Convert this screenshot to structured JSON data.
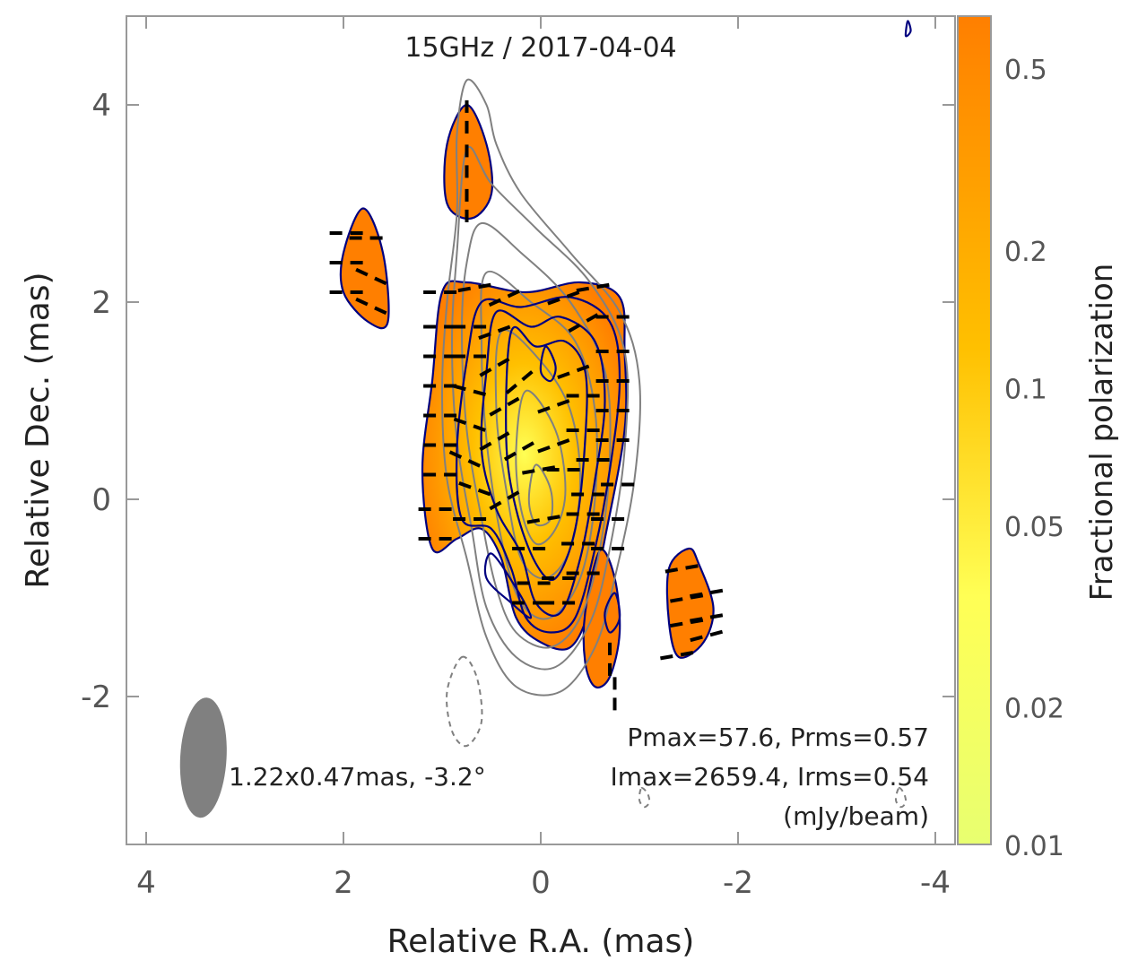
{
  "colors": {
    "frame": "#999999",
    "tick_label": "#555555",
    "fill_high": "#ff7f00",
    "fill_mid": "#ffc000",
    "fill_low": "#ffff55",
    "pol_contour": "#000080",
    "total_contour": "#808080",
    "evpa": "#000000",
    "beam": "#808080"
  },
  "chart_data": {
    "type": "contour-map",
    "title": "15GHz / 2017-04-04",
    "xlabel": "Relative R.A. (mas)",
    "ylabel": "Relative Dec. (mas)",
    "x_ticks": [
      4,
      2,
      0,
      -2,
      -4
    ],
    "x_tick_labels": [
      "4",
      "2",
      "0",
      "-2",
      "-4"
    ],
    "y_ticks": [
      -2,
      0,
      2,
      4
    ],
    "y_tick_labels": [
      "-2",
      "0",
      "2",
      "4"
    ],
    "xlim": [
      4.2,
      -4.2
    ],
    "ylim": [
      -3.5,
      4.9
    ],
    "beam": {
      "major_mas": 1.22,
      "minor_mas": 0.47,
      "pa_deg": -3.2,
      "center": [
        3.42,
        -2.62
      ],
      "label": "1.22x0.47mas, -3.2°"
    },
    "stats": {
      "line1": "Pmax=57.6, Prms=0.57",
      "line2": "Imax=2659.4, Irms=0.54",
      "line3": "(mJy/beam)",
      "pmax": 57.6,
      "prms": 0.57,
      "imax": 2659.4,
      "irms": 0.54
    },
    "colorbar": {
      "label": "Fractional polarization",
      "scale": "log",
      "range": [
        0.01,
        0.65
      ],
      "ticks": [
        0.01,
        0.02,
        0.05,
        0.1,
        0.2,
        0.5
      ],
      "tick_labels": [
        "0.01",
        "0.02",
        "0.05",
        "0.1",
        "0.2",
        "0.5"
      ]
    },
    "total_intensity_contours": [
      [
        [
          0.75,
          4.25
        ],
        [
          0.55,
          4.0
        ],
        [
          0.45,
          3.6
        ],
        [
          0.2,
          3.1
        ],
        [
          -0.3,
          2.5
        ],
        [
          -0.8,
          1.9
        ],
        [
          -1.0,
          1.2
        ],
        [
          -0.95,
          0.2
        ],
        [
          -0.75,
          -0.8
        ],
        [
          -0.55,
          -1.5
        ],
        [
          -0.2,
          -1.95
        ],
        [
          0.25,
          -1.9
        ],
        [
          0.55,
          -1.4
        ],
        [
          0.75,
          -0.6
        ],
        [
          0.95,
          0.2
        ],
        [
          1.0,
          1.1
        ],
        [
          0.95,
          2.0
        ],
        [
          0.85,
          2.9
        ],
        [
          0.85,
          3.7
        ],
        [
          0.75,
          4.25
        ]
      ],
      [
        [
          0.75,
          3.55
        ],
        [
          0.5,
          3.2
        ],
        [
          0.05,
          2.75
        ],
        [
          -0.5,
          2.2
        ],
        [
          -0.85,
          1.5
        ],
        [
          -0.85,
          0.5
        ],
        [
          -0.7,
          -0.5
        ],
        [
          -0.5,
          -1.25
        ],
        [
          -0.15,
          -1.7
        ],
        [
          0.25,
          -1.6
        ],
        [
          0.55,
          -1.1
        ],
        [
          0.7,
          -0.3
        ],
        [
          0.85,
          0.6
        ],
        [
          0.9,
          1.6
        ],
        [
          0.85,
          2.5
        ],
        [
          0.75,
          3.55
        ]
      ],
      [
        [
          0.6,
          2.8
        ],
        [
          0.2,
          2.5
        ],
        [
          -0.3,
          2.0
        ],
        [
          -0.65,
          1.3
        ],
        [
          -0.7,
          0.4
        ],
        [
          -0.6,
          -0.5
        ],
        [
          -0.4,
          -1.2
        ],
        [
          -0.1,
          -1.5
        ],
        [
          0.25,
          -1.35
        ],
        [
          0.45,
          -0.9
        ],
        [
          0.6,
          -0.2
        ],
        [
          0.75,
          0.7
        ],
        [
          0.8,
          1.7
        ],
        [
          0.75,
          2.4
        ],
        [
          0.6,
          2.8
        ]
      ],
      [
        [
          0.55,
          2.3
        ],
        [
          0.1,
          2.0
        ],
        [
          -0.35,
          1.6
        ],
        [
          -0.55,
          0.9
        ],
        [
          -0.55,
          0.0
        ],
        [
          -0.4,
          -0.8
        ],
        [
          -0.1,
          -1.2
        ],
        [
          0.2,
          -1.05
        ],
        [
          0.4,
          -0.4
        ],
        [
          0.55,
          0.6
        ],
        [
          0.6,
          1.6
        ],
        [
          0.55,
          2.3
        ]
      ],
      [
        [
          0.4,
          1.7
        ],
        [
          0.0,
          1.4
        ],
        [
          -0.3,
          0.9
        ],
        [
          -0.4,
          0.2
        ],
        [
          -0.3,
          -0.5
        ],
        [
          -0.05,
          -0.8
        ],
        [
          0.2,
          -0.6
        ],
        [
          0.35,
          0.1
        ],
        [
          0.45,
          0.9
        ],
        [
          0.4,
          1.7
        ]
      ],
      [
        [
          0.15,
          1.1
        ],
        [
          -0.15,
          0.7
        ],
        [
          -0.25,
          0.1
        ],
        [
          -0.15,
          -0.3
        ],
        [
          0.05,
          -0.45
        ],
        [
          0.2,
          -0.1
        ],
        [
          0.25,
          0.5
        ],
        [
          0.15,
          1.1
        ]
      ],
      [
        [
          0.05,
          0.35
        ],
        [
          -0.1,
          0.1
        ],
        [
          -0.1,
          -0.2
        ],
        [
          0.05,
          -0.25
        ],
        [
          0.12,
          0.0
        ],
        [
          0.05,
          0.35
        ]
      ]
    ],
    "negative_contours": [
      [
        [
          0.8,
          -1.6
        ],
        [
          0.65,
          -1.8
        ],
        [
          0.6,
          -2.25
        ],
        [
          0.75,
          -2.5
        ],
        [
          0.9,
          -2.35
        ],
        [
          0.95,
          -1.95
        ],
        [
          0.8,
          -1.6
        ]
      ],
      [
        [
          -1.02,
          -2.93
        ],
        [
          -1.08,
          -2.98
        ],
        [
          -1.1,
          -3.07
        ],
        [
          -1.05,
          -3.12
        ],
        [
          -1.0,
          -3.05
        ],
        [
          -1.02,
          -2.93
        ]
      ],
      [
        [
          -3.63,
          -2.93
        ],
        [
          -3.68,
          -2.98
        ],
        [
          -3.7,
          -3.07
        ],
        [
          -3.65,
          -3.12
        ],
        [
          -3.6,
          -3.05
        ],
        [
          -3.63,
          -2.93
        ]
      ]
    ],
    "polarized_regions": [
      [
        [
          1.0,
          2.1
        ],
        [
          0.75,
          2.2
        ],
        [
          0.15,
          2.1
        ],
        [
          -0.4,
          2.2
        ],
        [
          -0.8,
          2.05
        ],
        [
          -0.85,
          1.5
        ],
        [
          -0.85,
          0.7
        ],
        [
          -0.65,
          -0.4
        ],
        [
          -0.5,
          -1.1
        ],
        [
          -0.3,
          -1.5
        ],
        [
          0.0,
          -1.45
        ],
        [
          0.25,
          -1.2
        ],
        [
          0.4,
          -0.6
        ],
        [
          0.6,
          -0.3
        ],
        [
          0.85,
          -0.4
        ],
        [
          1.1,
          -0.5
        ],
        [
          1.2,
          0.3
        ],
        [
          1.1,
          1.2
        ],
        [
          1.0,
          2.1
        ]
      ],
      [
        [
          0.75,
          4.0
        ],
        [
          0.55,
          3.6
        ],
        [
          0.5,
          3.1
        ],
        [
          0.7,
          2.85
        ],
        [
          0.95,
          3.0
        ],
        [
          0.95,
          3.6
        ],
        [
          0.75,
          4.0
        ]
      ],
      [
        [
          1.8,
          2.95
        ],
        [
          1.6,
          2.5
        ],
        [
          1.55,
          1.8
        ],
        [
          1.75,
          1.8
        ],
        [
          2.0,
          2.1
        ],
        [
          2.0,
          2.5
        ],
        [
          1.8,
          2.95
        ]
      ],
      [
        [
          -0.6,
          -0.52
        ],
        [
          -0.75,
          -0.8
        ],
        [
          -0.8,
          -1.35
        ],
        [
          -0.7,
          -1.8
        ],
        [
          -0.55,
          -1.9
        ],
        [
          -0.45,
          -1.65
        ],
        [
          -0.45,
          -1.15
        ],
        [
          -0.6,
          -0.52
        ]
      ],
      [
        [
          -1.5,
          -0.5
        ],
        [
          -1.3,
          -0.7
        ],
        [
          -1.3,
          -1.25
        ],
        [
          -1.4,
          -1.6
        ],
        [
          -1.65,
          -1.45
        ],
        [
          -1.75,
          -1.1
        ],
        [
          -1.6,
          -0.65
        ],
        [
          -1.5,
          -0.5
        ]
      ]
    ],
    "polarized_contours_inner": [
      [
        [
          0.6,
          2.0
        ],
        [
          0.2,
          1.95
        ],
        [
          -0.3,
          2.05
        ],
        [
          -0.7,
          1.8
        ],
        [
          -0.8,
          1.2
        ],
        [
          -0.7,
          0.3
        ],
        [
          -0.55,
          -0.5
        ],
        [
          -0.35,
          -1.2
        ],
        [
          -0.1,
          -1.35
        ],
        [
          0.15,
          -1.2
        ],
        [
          0.3,
          -0.7
        ],
        [
          0.5,
          -0.3
        ],
        [
          0.8,
          -0.2
        ],
        [
          0.85,
          0.5
        ],
        [
          0.75,
          1.4
        ],
        [
          0.6,
          2.0
        ]
      ],
      [
        [
          0.45,
          1.9
        ],
        [
          0.1,
          1.75
        ],
        [
          -0.2,
          1.85
        ],
        [
          -0.55,
          1.6
        ],
        [
          -0.65,
          1.0
        ],
        [
          -0.55,
          0.2
        ],
        [
          -0.4,
          -0.6
        ],
        [
          -0.2,
          -1.15
        ],
        [
          0.05,
          -1.05
        ],
        [
          0.2,
          -0.55
        ],
        [
          0.45,
          -0.1
        ],
        [
          0.6,
          0.5
        ],
        [
          0.55,
          1.3
        ],
        [
          0.45,
          1.9
        ]
      ],
      [
        [
          0.3,
          1.7
        ],
        [
          0.05,
          1.55
        ],
        [
          -0.25,
          1.6
        ],
        [
          -0.45,
          1.3
        ],
        [
          -0.45,
          0.6
        ],
        [
          -0.35,
          -0.3
        ],
        [
          -0.15,
          -0.8
        ],
        [
          0.05,
          -0.65
        ],
        [
          0.25,
          -0.1
        ],
        [
          0.35,
          0.6
        ],
        [
          0.3,
          1.7
        ]
      ],
      [
        [
          -0.05,
          1.55
        ],
        [
          -0.15,
          1.35
        ],
        [
          -0.1,
          1.2
        ],
        [
          0.0,
          1.3
        ],
        [
          -0.05,
          1.55
        ]
      ],
      [
        [
          0.5,
          -0.55
        ],
        [
          0.25,
          -0.9
        ],
        [
          0.1,
          -1.2
        ],
        [
          0.3,
          -1.05
        ],
        [
          0.55,
          -0.8
        ],
        [
          0.5,
          -0.55
        ]
      ],
      [
        [
          -0.75,
          -0.95
        ],
        [
          -0.8,
          -1.2
        ],
        [
          -0.7,
          -1.35
        ],
        [
          -0.65,
          -1.15
        ],
        [
          -0.75,
          -0.95
        ]
      ],
      [
        [
          -3.72,
          4.85
        ],
        [
          -3.75,
          4.75
        ],
        [
          -3.7,
          4.7
        ],
        [
          -3.72,
          4.85
        ]
      ]
    ],
    "evpa_vectors": [
      [
        0.75,
        3.9,
        90
      ],
      [
        0.75,
        3.45,
        90
      ],
      [
        0.75,
        3.0,
        90
      ],
      [
        1.95,
        2.7,
        0
      ],
      [
        1.75,
        2.65,
        0
      ],
      [
        1.95,
        2.4,
        0
      ],
      [
        1.7,
        2.25,
        -25
      ],
      [
        1.95,
        2.1,
        0
      ],
      [
        1.7,
        1.95,
        -25
      ],
      [
        1.0,
        2.1,
        0
      ],
      [
        0.65,
        2.15,
        10
      ],
      [
        0.35,
        2.05,
        25
      ],
      [
        -0.25,
        2.05,
        20
      ],
      [
        -0.55,
        2.15,
        10
      ],
      [
        -0.75,
        1.85,
        0
      ],
      [
        1.0,
        1.75,
        0
      ],
      [
        0.7,
        1.75,
        0
      ],
      [
        0.45,
        1.7,
        20
      ],
      [
        -0.45,
        1.8,
        30
      ],
      [
        -0.75,
        1.5,
        0
      ],
      [
        1.0,
        1.45,
        0
      ],
      [
        0.7,
        1.45,
        0
      ],
      [
        0.45,
        1.35,
        30
      ],
      [
        0.2,
        1.2,
        40
      ],
      [
        -0.35,
        1.3,
        20
      ],
      [
        -0.75,
        1.2,
        0
      ],
      [
        1.0,
        1.15,
        0
      ],
      [
        0.7,
        1.1,
        -15
      ],
      [
        0.35,
        0.95,
        30
      ],
      [
        -0.15,
        0.95,
        20
      ],
      [
        -0.45,
        1.05,
        0
      ],
      [
        -0.75,
        0.9,
        0
      ],
      [
        1.0,
        0.85,
        0
      ],
      [
        0.7,
        0.75,
        -20
      ],
      [
        0.45,
        0.6,
        30
      ],
      [
        0.2,
        0.5,
        30
      ],
      [
        -0.15,
        0.55,
        20
      ],
      [
        -0.45,
        0.7,
        0
      ],
      [
        -0.75,
        0.6,
        0
      ],
      [
        1.0,
        0.55,
        0
      ],
      [
        0.75,
        0.4,
        -25
      ],
      [
        0.0,
        0.3,
        10
      ],
      [
        -0.25,
        0.3,
        0
      ],
      [
        -0.55,
        0.4,
        0
      ],
      [
        1.0,
        0.25,
        0
      ],
      [
        0.65,
        0.1,
        -20
      ],
      [
        0.35,
        0.0,
        30
      ],
      [
        -0.5,
        0.05,
        0
      ],
      [
        -0.8,
        0.15,
        0
      ],
      [
        1.05,
        -0.1,
        0
      ],
      [
        0.7,
        -0.2,
        0
      ],
      [
        -0.05,
        -0.2,
        10
      ],
      [
        -0.45,
        -0.15,
        0
      ],
      [
        -0.7,
        -0.2,
        0
      ],
      [
        1.05,
        -0.4,
        0
      ],
      [
        0.1,
        -0.5,
        0
      ],
      [
        -0.4,
        -0.45,
        0
      ],
      [
        -0.7,
        -0.5,
        0
      ],
      [
        0.05,
        -0.85,
        0
      ],
      [
        -0.2,
        -0.8,
        0
      ],
      [
        -0.45,
        -0.75,
        0
      ],
      [
        0.1,
        -1.05,
        0
      ],
      [
        -0.2,
        -1.05,
        0
      ],
      [
        -0.7,
        -1.6,
        90
      ],
      [
        -0.75,
        -1.95,
        90
      ],
      [
        -1.45,
        -0.7,
        10
      ],
      [
        -1.7,
        -0.95,
        10
      ],
      [
        -1.5,
        -1.0,
        10
      ],
      [
        -1.7,
        -1.2,
        10
      ],
      [
        -1.5,
        -1.25,
        10
      ],
      [
        -1.7,
        -1.38,
        15
      ],
      [
        -1.4,
        -1.58,
        10
      ]
    ]
  }
}
